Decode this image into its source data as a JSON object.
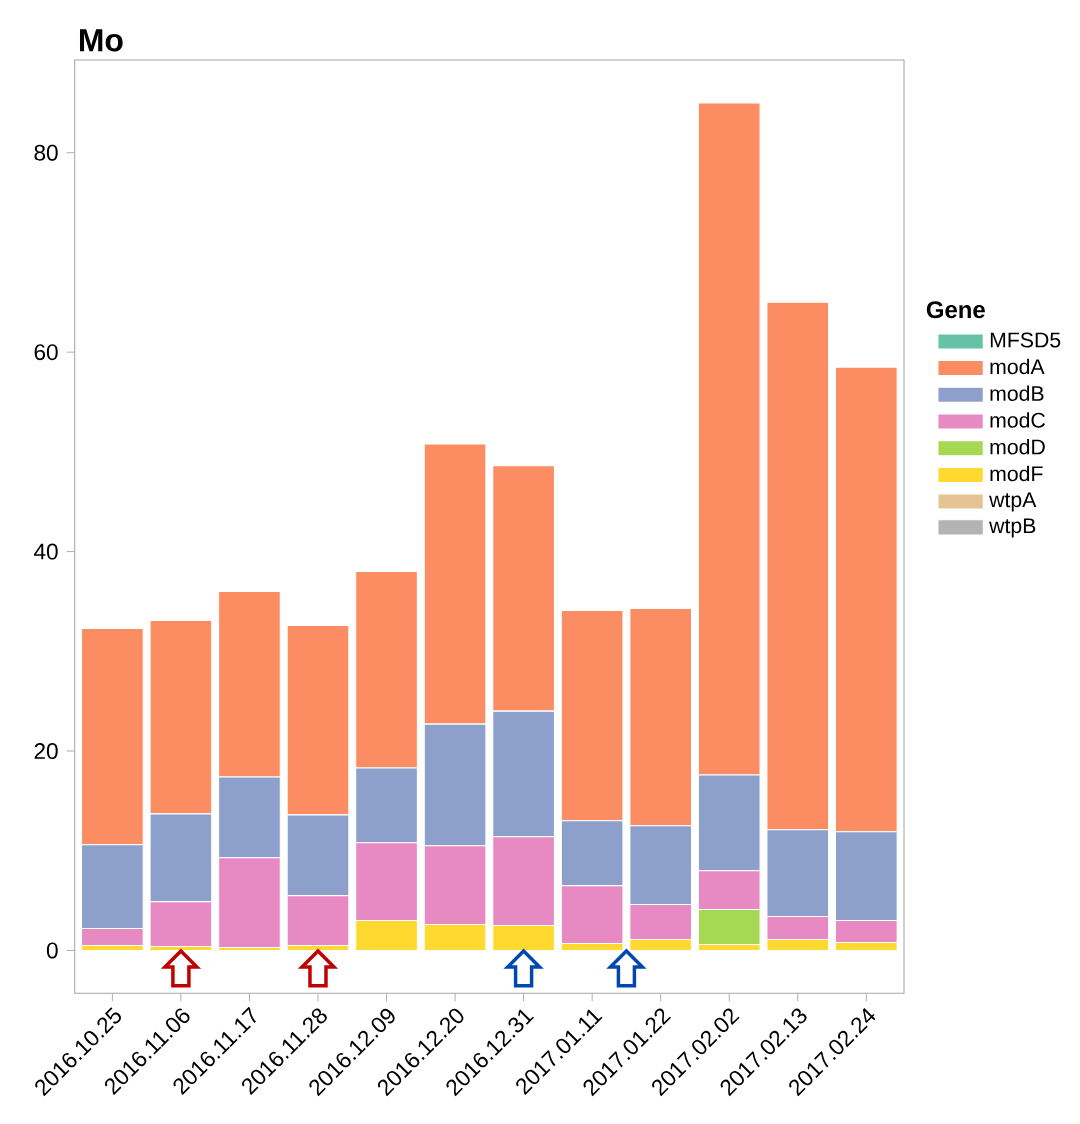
{
  "chart_data": {
    "type": "bar",
    "stacked": true,
    "title": "Mo",
    "legend_title": "Gene",
    "legend": "right",
    "categories": [
      "2016.10.25",
      "2016.11.06",
      "2016.11.17",
      "2016.11.28",
      "2016.12.09",
      "2016.12.20",
      "2016.12.31",
      "2017.01.11",
      "2017.01.22",
      "2017.02.02",
      "2017.02.13",
      "2017.02.24"
    ],
    "ylim": [
      -4.3,
      89.3
    ],
    "yticks": [
      0,
      20,
      40,
      60,
      80
    ],
    "grid": false,
    "series": [
      {
        "name": "wtpB",
        "color": "#b3b3b3",
        "values": [
          0,
          0,
          0,
          0,
          0,
          0,
          0,
          0,
          0,
          0,
          0,
          0
        ]
      },
      {
        "name": "wtpA",
        "color": "#e5c494",
        "values": [
          0,
          0,
          0,
          0,
          0,
          0,
          0,
          0,
          0,
          0,
          0,
          0
        ]
      },
      {
        "name": "modF",
        "color": "#ffd92f",
        "values": [
          0.5,
          0.4,
          0.3,
          0.5,
          3.0,
          2.6,
          2.5,
          0.7,
          1.1,
          0.6,
          1.1,
          0.8
        ]
      },
      {
        "name": "modD",
        "color": "#a6d854",
        "values": [
          0,
          0,
          0,
          0,
          0,
          0,
          0,
          0,
          0,
          3.5,
          0,
          0
        ]
      },
      {
        "name": "modC",
        "color": "#e78ac3",
        "values": [
          1.7,
          4.5,
          9.0,
          5.0,
          7.8,
          7.9,
          8.9,
          5.8,
          3.5,
          3.9,
          2.3,
          2.2
        ]
      },
      {
        "name": "modB",
        "color": "#8da0cb",
        "values": [
          8.4,
          8.8,
          8.1,
          8.1,
          7.5,
          12.2,
          12.6,
          6.5,
          7.9,
          9.6,
          8.7,
          8.9
        ]
      },
      {
        "name": "modA",
        "color": "#fc8d62",
        "values": [
          21.7,
          19.4,
          18.6,
          19.0,
          19.7,
          28.1,
          24.6,
          21.1,
          21.8,
          67.4,
          52.9,
          46.6
        ]
      },
      {
        "name": "MFSD5",
        "color": "#66c2a5",
        "values": [
          0,
          0,
          0,
          0,
          0,
          0,
          0,
          0,
          0,
          0,
          0,
          0
        ]
      }
    ]
  }
}
